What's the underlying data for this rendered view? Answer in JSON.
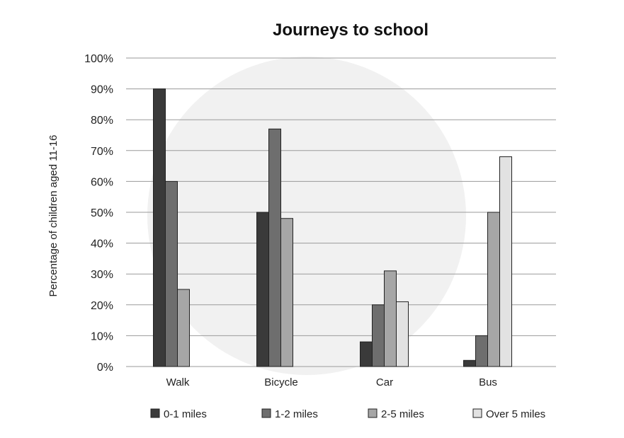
{
  "chart_data": {
    "type": "bar",
    "title": "Journeys to school",
    "xlabel": "",
    "ylabel": "Percentage of children aged 11-16",
    "categories": [
      "Walk",
      "Bicycle",
      "Car",
      "Bus"
    ],
    "series": [
      {
        "name": "0-1 miles",
        "values": [
          90,
          50,
          8,
          2
        ],
        "color": "#3a3a3a"
      },
      {
        "name": "1-2 miles",
        "values": [
          60,
          77,
          20,
          10
        ],
        "color": "#6e6e6e"
      },
      {
        "name": "2-5 miles",
        "values": [
          null,
          48,
          31,
          50
        ],
        "color": "#a6a6a6"
      },
      {
        "name": "Over 5 miles",
        "values": [
          null,
          null,
          21,
          68
        ],
        "color": "#e2e2e2"
      }
    ],
    "extra_bars": [
      {
        "category": "Walk",
        "value": 25,
        "color": "#a6a6a6"
      }
    ],
    "ylim": [
      0,
      100
    ],
    "yticks": [
      "0%",
      "10%",
      "20%",
      "30%",
      "40%",
      "50%",
      "60%",
      "70%",
      "80%",
      "90%",
      "100%"
    ],
    "grid": true,
    "legend_position": "bottom"
  }
}
